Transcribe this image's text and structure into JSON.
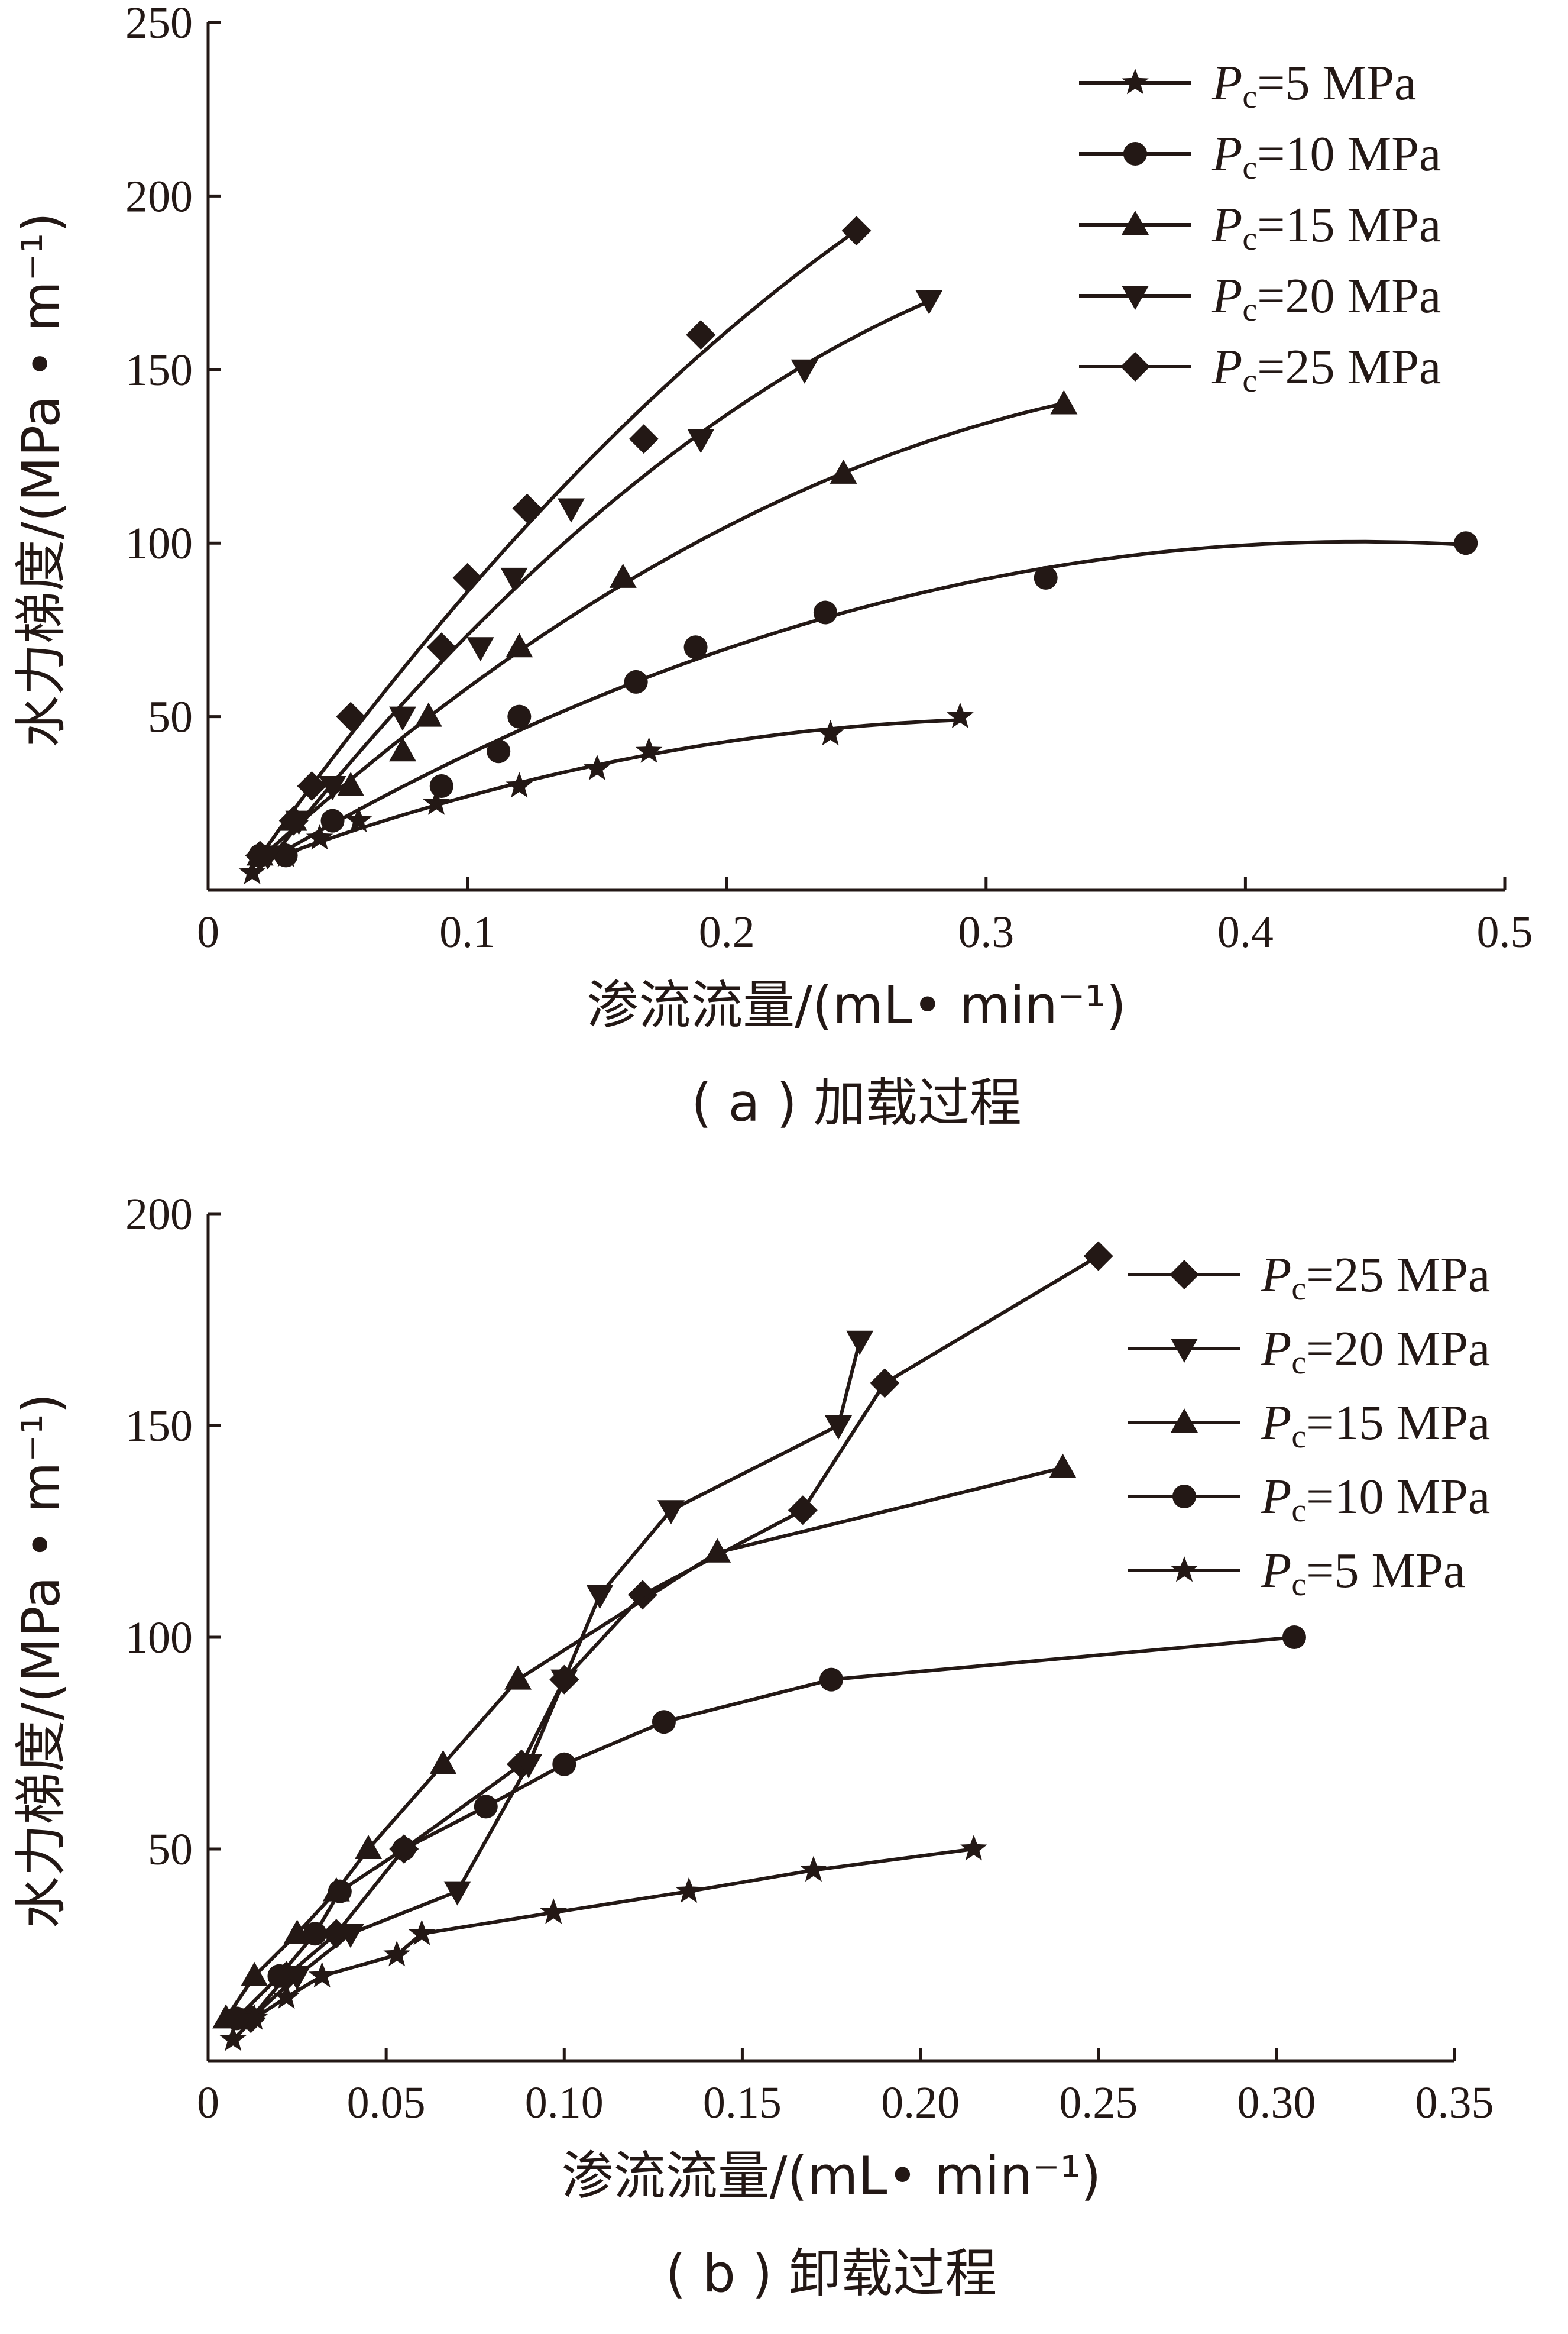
{
  "chart_data": [
    {
      "type": "scatter",
      "panel": "a",
      "caption": "( a ) 加载过程",
      "xlabel": "渗流流量/(mL• min⁻¹)",
      "ylabel": "水力梯度/(MPa • m⁻¹)",
      "xlim": [
        0,
        0.5
      ],
      "ylim": [
        0,
        250
      ],
      "xticks": [
        0,
        0.1,
        0.2,
        0.3,
        0.4,
        0.5
      ],
      "xtick_labels": [
        "0",
        "0.1",
        "0.2",
        "0.3",
        "0.4",
        "0.5"
      ],
      "yticks": [
        50,
        100,
        150,
        200,
        250
      ],
      "ytick_labels": [
        "50",
        "100",
        "150",
        "200",
        "250"
      ],
      "legend_position": "top-right",
      "fit_curves": true,
      "series": [
        {
          "name": "Pc=5 MPa",
          "sub": "c",
          "rest": "=5 MPa",
          "marker": "star",
          "x": [
            0.017,
            0.03,
            0.043,
            0.058,
            0.088,
            0.12,
            0.15,
            0.17,
            0.24,
            0.29
          ],
          "y": [
            5,
            10,
            15,
            20,
            25,
            30,
            35,
            40,
            45,
            50
          ]
        },
        {
          "name": "Pc=10 MPa",
          "sub": "c",
          "rest": "=10 MPa",
          "marker": "circle",
          "x": [
            0.02,
            0.03,
            0.048,
            0.09,
            0.112,
            0.12,
            0.165,
            0.188,
            0.238,
            0.323,
            0.485
          ],
          "y": [
            10,
            10,
            20,
            30,
            40,
            50,
            60,
            70,
            80,
            90,
            100
          ]
        },
        {
          "name": "Pc=15 MPa",
          "sub": "c",
          "rest": "=15 MPa",
          "marker": "triangle-up",
          "x": [
            0.02,
            0.033,
            0.055,
            0.075,
            0.085,
            0.12,
            0.16,
            0.245,
            0.33
          ],
          "y": [
            10,
            20,
            30,
            40,
            50,
            70,
            90,
            120,
            140
          ]
        },
        {
          "name": "Pc=20 MPa",
          "sub": "c",
          "rest": "=20 MPa",
          "marker": "triangle-down",
          "x": [
            0.023,
            0.035,
            0.048,
            0.075,
            0.105,
            0.118,
            0.14,
            0.19,
            0.23,
            0.278
          ],
          "y": [
            10,
            20,
            30,
            50,
            70,
            90,
            110,
            130,
            150,
            170
          ]
        },
        {
          "name": "Pc=25 MPa",
          "sub": "c",
          "rest": "=25 MPa",
          "marker": "diamond",
          "x": [
            0.02,
            0.033,
            0.04,
            0.055,
            0.09,
            0.1,
            0.123,
            0.168,
            0.19,
            0.25
          ],
          "y": [
            10,
            20,
            30,
            50,
            70,
            90,
            110,
            130,
            160,
            190
          ]
        }
      ]
    },
    {
      "type": "line",
      "panel": "b",
      "caption": "( b ) 卸载过程",
      "xlabel": "渗流流量/(mL• min⁻¹)",
      "ylabel": "水力梯度/(MPa • m⁻¹)",
      "xlim": [
        0,
        0.35
      ],
      "ylim": [
        0,
        200
      ],
      "xticks": [
        0,
        0.05,
        0.1,
        0.15,
        0.2,
        0.25,
        0.3,
        0.35
      ],
      "xtick_labels": [
        "0",
        "0.05",
        "0.10",
        "0.15",
        "0.20",
        "0.25",
        "0.30",
        "0.35"
      ],
      "yticks": [
        50,
        100,
        150,
        200
      ],
      "ytick_labels": [
        "50",
        "100",
        "150",
        "200"
      ],
      "legend_position": "top-right",
      "fit_curves": false,
      "series": [
        {
          "name": "Pc=25 MPa",
          "sub": "c",
          "rest": "=25 MPa",
          "marker": "diamond",
          "x": [
            0.012,
            0.022,
            0.036,
            0.055,
            0.088,
            0.1,
            0.122,
            0.167,
            0.19,
            0.25
          ],
          "y": [
            10,
            20,
            30,
            50,
            70,
            90,
            110,
            130,
            160,
            190
          ]
        },
        {
          "name": "Pc=20 MPa",
          "sub": "c",
          "rest": "=20 MPa",
          "marker": "triangle-down",
          "x": [
            0.012,
            0.025,
            0.04,
            0.07,
            0.09,
            0.1,
            0.11,
            0.13,
            0.177,
            0.183
          ],
          "y": [
            10,
            20,
            30,
            40,
            70,
            90,
            110,
            130,
            150,
            170
          ]
        },
        {
          "name": "Pc=15 MPa",
          "sub": "c",
          "rest": "=15 MPa",
          "marker": "triangle-up",
          "x": [
            0.005,
            0.013,
            0.025,
            0.036,
            0.045,
            0.066,
            0.087,
            0.143,
            0.24
          ],
          "y": [
            10,
            20,
            30,
            40,
            50,
            70,
            90,
            120,
            140
          ]
        },
        {
          "name": "Pc=10 MPa",
          "sub": "c",
          "rest": "=10 MPa",
          "marker": "circle",
          "x": [
            0.008,
            0.02,
            0.03,
            0.037,
            0.055,
            0.078,
            0.1,
            0.128,
            0.175,
            0.305
          ],
          "y": [
            10,
            20,
            30,
            40,
            50,
            60,
            70,
            80,
            90,
            100
          ]
        },
        {
          "name": "Pc=5 MPa",
          "sub": "c",
          "rest": "=5 MPa",
          "marker": "star",
          "x": [
            0.007,
            0.013,
            0.022,
            0.032,
            0.053,
            0.06,
            0.097,
            0.135,
            0.17,
            0.215
          ],
          "y": [
            5,
            10,
            15,
            20,
            25,
            30,
            35,
            40,
            45,
            50
          ]
        }
      ]
    }
  ]
}
